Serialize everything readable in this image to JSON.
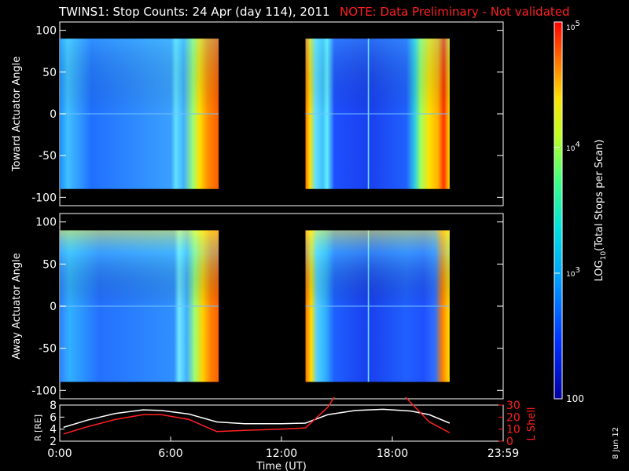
{
  "title": "TWINS1: Stop Counts: 24 Apr (day 114), 2011",
  "note": "NOTE: Data Preliminary - Not validated",
  "date_stamp": "8 Jun 12",
  "colors": {
    "background": "#000000",
    "note": "#ff2020",
    "lshell": "#ff2020",
    "radius": "#ffffff",
    "fill_void": "#000000"
  },
  "chart_data": [
    {
      "type": "heatmap",
      "ylabel": "Toward Actuator Angle",
      "ylim": [
        -110,
        110
      ],
      "y_ticks": [
        "100",
        "50",
        "0",
        "-50",
        "-100"
      ],
      "data_coverage_hours": [
        [
          0.0,
          8.6
        ],
        [
          13.3,
          21.1
        ]
      ],
      "angle_range": [
        -90,
        90
      ],
      "color_scale": "log",
      "description_levels": [
        "low (blue) mid-angles",
        "high (red) after ~8h and ~20.5h"
      ]
    },
    {
      "type": "heatmap",
      "ylabel": "Away Actuator Angle",
      "ylim": [
        -110,
        110
      ],
      "y_ticks": [
        "100",
        "50",
        "0",
        "-50",
        "-100"
      ],
      "data_coverage_hours": [
        [
          0.0,
          8.6
        ],
        [
          13.3,
          21.1
        ]
      ],
      "angle_range": [
        -90,
        90
      ],
      "color_scale": "log"
    },
    {
      "type": "line",
      "xlabel": "Time (UT)",
      "x_ticks": [
        "0:00",
        "6:00",
        "12:00",
        "18:00",
        "23:59"
      ],
      "xlim": [
        0,
        24
      ],
      "left_axis": {
        "label": "R [RE]",
        "label_sub": "E",
        "ylim": [
          2,
          8
        ],
        "ticks": [
          "2",
          "4",
          "6",
          "8"
        ]
      },
      "right_axis": {
        "label": "L Shell",
        "ylim": [
          0,
          30
        ],
        "ticks": [
          "0",
          "10",
          "20",
          "30"
        ]
      },
      "series": [
        {
          "name": "R [RE]",
          "axis": "left",
          "x": [
            0.2,
            1.5,
            3.0,
            4.5,
            5.5,
            7.0,
            8.5,
            10.0,
            12.0,
            13.3,
            14.5,
            16.0,
            17.5,
            19.0,
            20.0,
            21.1
          ],
          "y": [
            4.3,
            5.5,
            6.6,
            7.2,
            7.1,
            6.5,
            5.2,
            4.9,
            4.9,
            5.0,
            6.4,
            7.1,
            7.3,
            7.0,
            6.4,
            5.0
          ]
        },
        {
          "name": "L Shell",
          "axis": "right",
          "x": [
            0.2,
            1.5,
            3.0,
            4.5,
            5.5,
            7.0,
            8.5,
            10.0,
            12.0,
            13.3,
            14.5,
            15.0,
            18.5,
            20.0,
            21.1
          ],
          "y": [
            6,
            12,
            18,
            22,
            22,
            18,
            8,
            9,
            10,
            11,
            28,
            40,
            40,
            16,
            7
          ]
        }
      ]
    }
  ],
  "colorbar": {
    "label": "LOG",
    "label_sub": "10",
    "label_rest": "(Total Stops per Scan)",
    "ticks": [
      {
        "base": "10",
        "exp": "5"
      },
      {
        "base": "10",
        "exp": "4"
      },
      {
        "base": "10",
        "exp": "3"
      },
      {
        "base": "100",
        "exp": ""
      }
    ]
  }
}
